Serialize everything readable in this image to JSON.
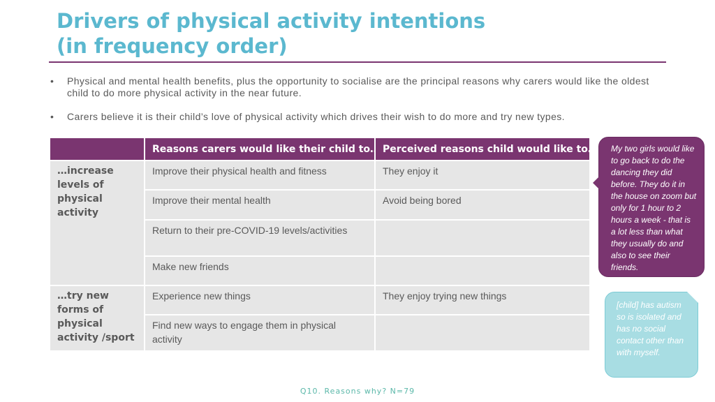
{
  "title_line1": "Drivers of physical activity intentions",
  "title_line2": "(in frequency order)",
  "bullets": [
    "Physical and mental health benefits, plus the opportunity to socialise are the principal reasons why carers would like the oldest child to do more physical activity in the near future.",
    "Carers believe it is their child’s love of physical activity which drives their wish to do more and try new types."
  ],
  "bullet_symbol": "•",
  "table": {
    "headers": [
      "",
      "Reasons carers would like their child to…",
      "Perceived reasons child would like to…"
    ],
    "groups": [
      {
        "label": "…increase levels of physical activity",
        "rows": [
          [
            "Improve their physical health and fitness",
            "They enjoy it"
          ],
          [
            "Improve their mental health",
            "Avoid being bored"
          ],
          [
            "Return to their pre-COVID-19 levels/activities",
            ""
          ],
          [
            "Make new friends",
            ""
          ]
        ]
      },
      {
        "label": "…try new forms of physical activity /sport",
        "rows": [
          [
            "Experience new things",
            "They enjoy trying new things"
          ],
          [
            "Find new ways to engage them in physical activity",
            ""
          ]
        ]
      }
    ]
  },
  "quotes": [
    "My two girls would like to go back to do the dancing they did before. They do it in the house on zoom but only for 1 hour to 2 hours a week - that is a lot less than what they usually do and also to see their friends.",
    "[child] has autism so is isolated and has no social contact other than with myself."
  ],
  "footnote": "Q10. Reasons why? N=79",
  "colors": {
    "title": "#5bb8cf",
    "accent_purple": "#7a3570",
    "teal_callout": "#a8dde3",
    "cell_grey": "#e6e6e6",
    "body_text": "#595959"
  }
}
